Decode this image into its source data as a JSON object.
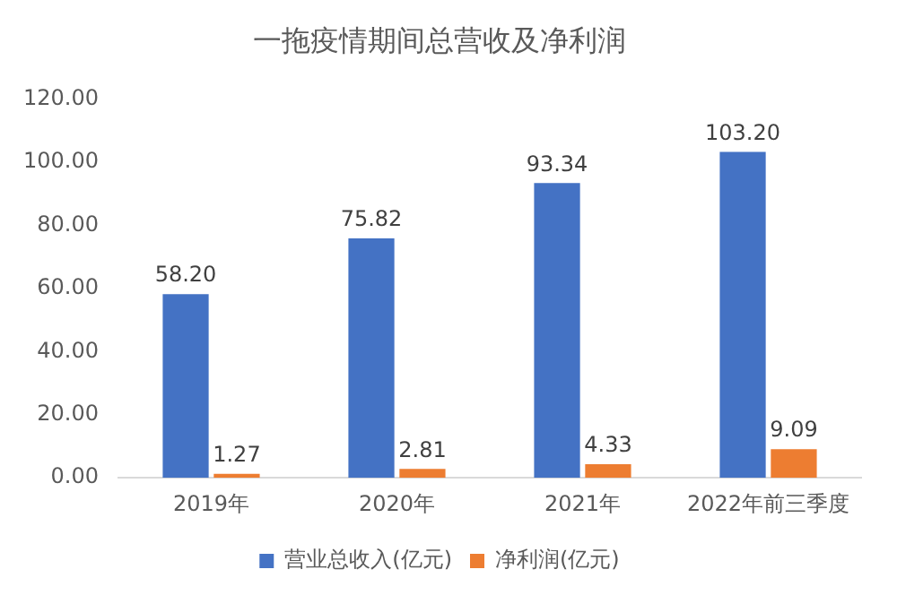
{
  "chart_data": {
    "type": "bar",
    "title": "一拖疫情期间总营收及净利润",
    "categories": [
      "2019年",
      "2020年",
      "2021年",
      "2022年前三季度"
    ],
    "series": [
      {
        "name": "营业总收入(亿元)",
        "color": "#4472c4",
        "values": [
          58.2,
          75.82,
          93.34,
          103.2
        ],
        "value_labels": [
          "58.20",
          "75.82",
          "93.34",
          "103.20"
        ]
      },
      {
        "name": "净利润(亿元)",
        "color": "#ed7d31",
        "values": [
          1.27,
          2.81,
          4.33,
          9.09
        ],
        "value_labels": [
          "1.27",
          "2.81",
          "4.33",
          "9.09"
        ]
      }
    ],
    "ylim": [
      0,
      120
    ],
    "yticks": [
      {
        "value": 0,
        "label": "0.00"
      },
      {
        "value": 20,
        "label": "20.00"
      },
      {
        "value": 40,
        "label": "40.00"
      },
      {
        "value": 60,
        "label": "60.00"
      },
      {
        "value": 80,
        "label": "80.00"
      },
      {
        "value": 100,
        "label": "100.00"
      },
      {
        "value": 120,
        "label": "120.00"
      }
    ],
    "grid": false,
    "legend": "bottom"
  }
}
